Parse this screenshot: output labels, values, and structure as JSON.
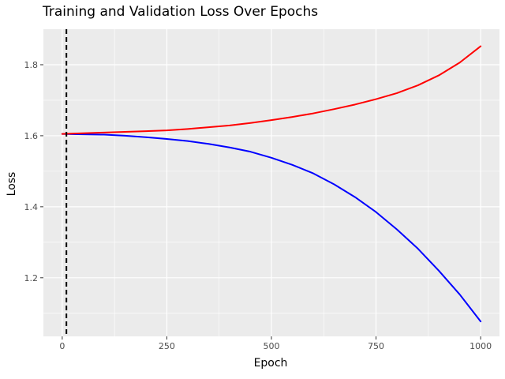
{
  "chart_data": {
    "type": "line",
    "title": "Training and Validation Loss Over Epochs",
    "xlabel": "Epoch",
    "ylabel": "Loss",
    "xlim": [
      -45,
      1045
    ],
    "ylim": [
      1.035,
      1.9
    ],
    "x_ticks": [
      0,
      250,
      500,
      750,
      1000
    ],
    "x_tick_labels": [
      "0",
      "250",
      "500",
      "750",
      "1000"
    ],
    "y_ticks": [
      1.2,
      1.4,
      1.6,
      1.8
    ],
    "y_tick_labels": [
      "1.2",
      "1.4",
      "1.6",
      "1.8"
    ],
    "grid": true,
    "legend": "none",
    "background": "#EBEBEB",
    "vline": {
      "x": 10,
      "style": "dashed",
      "color": "#000000"
    },
    "x": [
      0,
      50,
      100,
      150,
      200,
      250,
      300,
      350,
      400,
      450,
      500,
      550,
      600,
      650,
      700,
      750,
      800,
      850,
      900,
      950,
      1000
    ],
    "series": [
      {
        "color": "#0000FF",
        "values": [
          1.605,
          1.604,
          1.603,
          1.6,
          1.596,
          1.591,
          1.585,
          1.577,
          1.567,
          1.555,
          1.538,
          1.518,
          1.494,
          1.463,
          1.427,
          1.385,
          1.336,
          1.282,
          1.22,
          1.153,
          1.077
        ]
      },
      {
        "color": "#FF0000",
        "values": [
          1.605,
          1.607,
          1.609,
          1.611,
          1.613,
          1.615,
          1.619,
          1.624,
          1.629,
          1.636,
          1.644,
          1.653,
          1.663,
          1.675,
          1.688,
          1.703,
          1.72,
          1.742,
          1.77,
          1.806,
          1.852
        ]
      }
    ]
  }
}
